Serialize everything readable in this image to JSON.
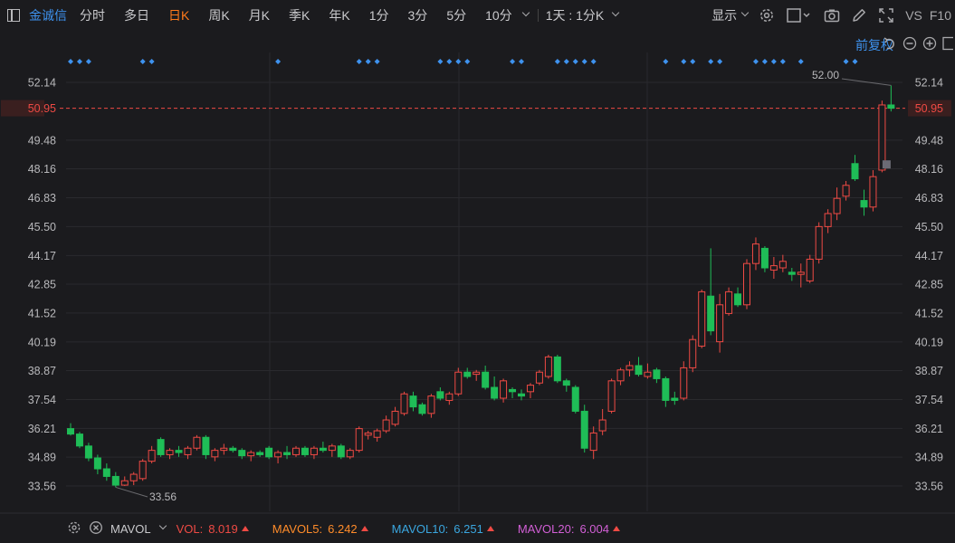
{
  "toolbar": {
    "stock_name": "金诚信",
    "periods": [
      "分时",
      "多日",
      "日K",
      "周K",
      "月K",
      "季K",
      "年K",
      "1分",
      "3分",
      "5分",
      "10分"
    ],
    "active_period": "日K",
    "combo": "1天 : 1分K",
    "display_label": "显示",
    "vs_label": "VS",
    "f10_label": "F10"
  },
  "subbar": {
    "fuquan_label": "前复权"
  },
  "price_axis": {
    "ticks": [
      "52.14",
      "50.95",
      "49.48",
      "48.16",
      "46.83",
      "45.50",
      "44.17",
      "42.85",
      "41.52",
      "40.19",
      "38.87",
      "37.54",
      "36.21",
      "34.89",
      "33.56"
    ],
    "current_price": "50.95",
    "current_price_color": "#ef4a44"
  },
  "annotations": {
    "high_label": "52.00",
    "low_label": "33.56"
  },
  "colors": {
    "up": "#ef4a44",
    "down": "#1fbd57",
    "accent": "#3e92ee",
    "active": "#ff7a1a"
  },
  "indicator": {
    "name": "MAVOL",
    "vol_label": "VOL:",
    "vol_value": "8.019",
    "mavol5_label": "MAVOL5:",
    "mavol5_value": "6.242",
    "mavol10_label": "MAVOL10:",
    "mavol10_value": "6.251",
    "mavol20_label": "MAVOL20:",
    "mavol20_value": "6.004"
  },
  "chart_data": {
    "type": "candlestick",
    "y_range": [
      33.56,
      52.14
    ],
    "event_markers": [
      0,
      1,
      2,
      8,
      9,
      23,
      32,
      33,
      34,
      41,
      42,
      43,
      44,
      49,
      50,
      54,
      55,
      56,
      57,
      58,
      66,
      68,
      69,
      71,
      72,
      76,
      77,
      78,
      79,
      81,
      86,
      87
    ],
    "candles": [
      [
        36.2,
        36.45,
        35.88,
        35.95
      ],
      [
        35.95,
        36.05,
        35.3,
        35.4
      ],
      [
        35.4,
        35.55,
        34.7,
        34.85
      ],
      [
        34.85,
        35.0,
        34.1,
        34.35
      ],
      [
        34.35,
        34.6,
        33.8,
        34.0
      ],
      [
        34.0,
        34.2,
        33.5,
        33.6
      ],
      [
        33.6,
        34.0,
        33.56,
        33.8
      ],
      [
        33.8,
        34.2,
        33.6,
        34.1
      ],
      [
        33.9,
        34.8,
        33.8,
        34.7
      ],
      [
        34.7,
        35.4,
        34.6,
        35.2
      ],
      [
        35.7,
        35.8,
        34.9,
        35.0
      ],
      [
        35.0,
        35.3,
        34.8,
        35.2
      ],
      [
        35.2,
        35.4,
        34.9,
        35.1
      ],
      [
        35.0,
        35.4,
        34.8,
        35.3
      ],
      [
        35.3,
        35.9,
        35.2,
        35.8
      ],
      [
        35.8,
        35.9,
        34.8,
        35.0
      ],
      [
        34.9,
        35.3,
        34.7,
        35.2
      ],
      [
        35.2,
        35.5,
        35.0,
        35.3
      ],
      [
        35.3,
        35.4,
        35.1,
        35.2
      ],
      [
        35.2,
        35.3,
        34.8,
        34.95
      ],
      [
        34.95,
        35.2,
        34.7,
        35.1
      ],
      [
        35.1,
        35.2,
        34.9,
        35.0
      ],
      [
        35.3,
        35.4,
        34.8,
        34.9
      ],
      [
        34.9,
        35.2,
        34.6,
        35.1
      ],
      [
        35.1,
        35.4,
        34.8,
        35.0
      ],
      [
        35.0,
        35.4,
        34.9,
        35.3
      ],
      [
        35.3,
        35.4,
        34.9,
        35.0
      ],
      [
        35.0,
        35.4,
        34.8,
        35.3
      ],
      [
        35.3,
        35.6,
        35.1,
        35.2
      ],
      [
        35.2,
        35.5,
        34.9,
        35.4
      ],
      [
        35.4,
        35.5,
        34.8,
        34.9
      ],
      [
        34.9,
        35.3,
        34.8,
        35.2
      ],
      [
        35.2,
        36.3,
        35.1,
        36.2
      ],
      [
        35.9,
        36.1,
        35.7,
        36.0
      ],
      [
        35.8,
        36.2,
        35.6,
        36.1
      ],
      [
        36.1,
        36.8,
        36.0,
        36.6
      ],
      [
        36.4,
        37.2,
        36.3,
        37.0
      ],
      [
        36.9,
        37.9,
        36.8,
        37.8
      ],
      [
        37.7,
        37.9,
        37.0,
        37.2
      ],
      [
        37.3,
        37.4,
        36.8,
        36.9
      ],
      [
        36.9,
        37.8,
        36.7,
        37.7
      ],
      [
        37.9,
        38.1,
        37.5,
        37.6
      ],
      [
        37.5,
        37.9,
        37.3,
        37.8
      ],
      [
        37.8,
        39.0,
        37.7,
        38.8
      ],
      [
        38.8,
        39.0,
        38.5,
        38.6
      ],
      [
        38.7,
        38.9,
        38.4,
        38.8
      ],
      [
        38.8,
        39.1,
        38.0,
        38.1
      ],
      [
        38.1,
        38.6,
        37.5,
        37.6
      ],
      [
        37.6,
        38.5,
        37.4,
        38.4
      ],
      [
        38.0,
        38.1,
        37.6,
        37.9
      ],
      [
        37.8,
        38.0,
        37.5,
        37.7
      ],
      [
        37.9,
        38.3,
        37.6,
        38.2
      ],
      [
        38.3,
        38.9,
        38.2,
        38.8
      ],
      [
        38.6,
        39.6,
        38.5,
        39.5
      ],
      [
        39.5,
        39.6,
        38.3,
        38.4
      ],
      [
        38.4,
        38.5,
        37.9,
        38.2
      ],
      [
        38.1,
        38.2,
        36.9,
        37.0
      ],
      [
        37.0,
        37.3,
        35.1,
        35.3
      ],
      [
        35.2,
        36.3,
        34.8,
        36.0
      ],
      [
        36.1,
        37.1,
        35.9,
        36.6
      ],
      [
        37.0,
        38.5,
        36.9,
        38.4
      ],
      [
        38.4,
        39.0,
        38.2,
        38.9
      ],
      [
        38.9,
        39.3,
        38.6,
        39.1
      ],
      [
        39.1,
        39.5,
        38.6,
        38.7
      ],
      [
        38.6,
        39.2,
        38.5,
        38.8
      ],
      [
        38.9,
        39.0,
        38.3,
        38.5
      ],
      [
        38.5,
        38.6,
        37.2,
        37.5
      ],
      [
        37.6,
        37.9,
        37.3,
        37.5
      ],
      [
        37.6,
        39.3,
        37.5,
        39.0
      ],
      [
        39.0,
        40.5,
        38.8,
        40.3
      ],
      [
        40.0,
        42.6,
        39.9,
        42.5
      ],
      [
        42.3,
        44.5,
        40.5,
        40.7
      ],
      [
        40.2,
        42.4,
        39.7,
        41.9
      ],
      [
        41.5,
        42.7,
        41.4,
        42.5
      ],
      [
        42.4,
        42.7,
        41.8,
        41.9
      ],
      [
        41.9,
        44.0,
        41.7,
        43.8
      ],
      [
        43.8,
        45.0,
        43.5,
        44.7
      ],
      [
        44.5,
        44.6,
        43.4,
        43.6
      ],
      [
        43.5,
        44.1,
        43.1,
        43.7
      ],
      [
        43.6,
        44.2,
        43.4,
        43.9
      ],
      [
        43.4,
        43.6,
        43.0,
        43.3
      ],
      [
        43.3,
        43.8,
        42.7,
        43.4
      ],
      [
        43.0,
        44.2,
        42.9,
        44.0
      ],
      [
        44.0,
        45.7,
        43.8,
        45.5
      ],
      [
        45.5,
        46.3,
        45.2,
        46.1
      ],
      [
        46.1,
        47.3,
        45.8,
        46.8
      ],
      [
        46.9,
        47.6,
        46.7,
        47.4
      ],
      [
        48.4,
        48.8,
        47.6,
        47.7
      ],
      [
        46.7,
        47.2,
        46.0,
        46.4
      ],
      [
        46.4,
        48.1,
        46.2,
        47.8
      ],
      [
        48.1,
        51.3,
        48.0,
        51.1
      ],
      [
        51.1,
        52.0,
        50.8,
        50.95
      ]
    ]
  }
}
